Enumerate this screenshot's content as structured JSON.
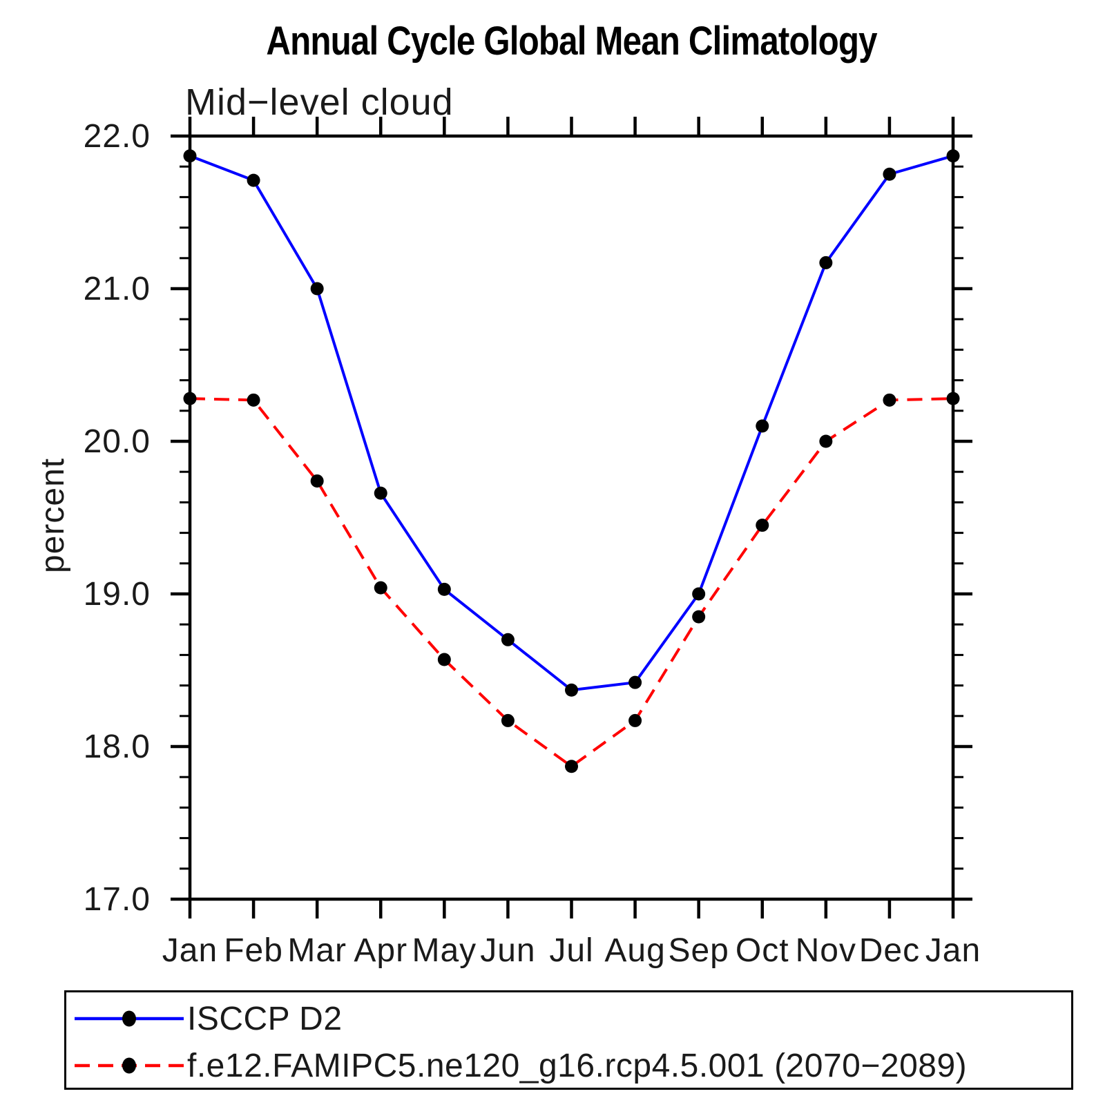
{
  "title": "Annual Cycle Global Mean Climatology",
  "chart_data": {
    "type": "line",
    "title": "Annual Cycle Global Mean Climatology",
    "subtitle": "Mid−level cloud",
    "xlabel": "",
    "ylabel": "percent",
    "categories": [
      "Jan",
      "Feb",
      "Mar",
      "Apr",
      "May",
      "Jun",
      "Jul",
      "Aug",
      "Sep",
      "Oct",
      "Nov",
      "Dec",
      "Jan"
    ],
    "series": [
      {
        "name": "ISCCP D2",
        "color": "#0000ff",
        "line_style": "solid",
        "marker": "filled-circle",
        "marker_color": "#000000",
        "values": [
          21.87,
          21.71,
          21.0,
          19.66,
          19.03,
          18.7,
          18.37,
          18.42,
          19.0,
          20.1,
          21.17,
          21.75,
          21.87
        ]
      },
      {
        "name": "f.e12.FAMIPC5.ne120_g16.rcp4.5.001 (2070−2089)",
        "color": "#ff0000",
        "line_style": "dashed",
        "marker": "filled-circle",
        "marker_color": "#000000",
        "values": [
          20.28,
          20.27,
          19.74,
          19.04,
          18.57,
          18.17,
          17.87,
          18.17,
          18.85,
          19.45,
          20.0,
          20.27,
          20.28
        ]
      }
    ],
    "ylim": [
      17.0,
      22.0
    ],
    "ytick_major_interval": 1.0,
    "ytick_minor_interval": 0.2,
    "ytick_labels": [
      "22.0",
      "21.0",
      "20.0",
      "19.0",
      "18.0",
      "17.0"
    ],
    "grid": "off",
    "legend_position": "bottom-left-box",
    "axis_color": "#000000"
  }
}
